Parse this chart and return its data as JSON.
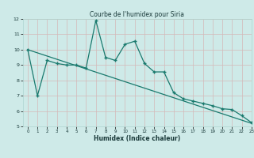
{
  "title": "Courbe de l'humidex pour Siria",
  "xlabel": "Humidex (Indice chaleur)",
  "x_data": [
    0,
    1,
    2,
    3,
    4,
    5,
    6,
    7,
    8,
    9,
    10,
    11,
    12,
    13,
    14,
    15,
    16,
    17,
    18,
    19,
    20,
    21,
    22,
    23
  ],
  "y_data": [
    10.0,
    7.0,
    9.3,
    9.1,
    9.0,
    9.0,
    8.8,
    11.9,
    9.5,
    9.3,
    10.35,
    10.55,
    9.1,
    8.55,
    8.55,
    7.2,
    6.8,
    6.65,
    6.5,
    6.35,
    6.15,
    6.1,
    5.7,
    5.25
  ],
  "trend_x": [
    0,
    23
  ],
  "trend_y": [
    10.0,
    5.2
  ],
  "line_color": "#1a7a6e",
  "bg_color": "#ceeae8",
  "grid_color": "#aed4d0",
  "ylim": [
    5,
    12
  ],
  "xlim": [
    -0.5,
    23
  ],
  "yticks": [
    5,
    6,
    7,
    8,
    9,
    10,
    11,
    12
  ],
  "xticks": [
    0,
    1,
    2,
    3,
    4,
    5,
    6,
    7,
    8,
    9,
    10,
    11,
    12,
    13,
    14,
    15,
    16,
    17,
    18,
    19,
    20,
    21,
    22,
    23
  ]
}
